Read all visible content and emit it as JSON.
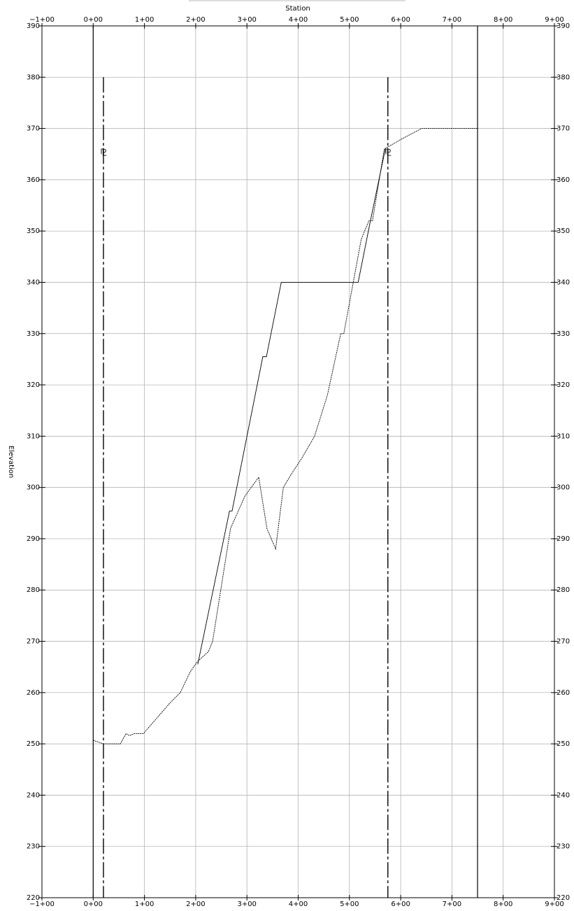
{
  "chart_data": {
    "type": "line",
    "x_label": "Station",
    "y_label": "Elevation",
    "xlim": [
      -100,
      900
    ],
    "ylim": [
      220,
      390
    ],
    "xticks": [
      {
        "value": -100,
        "label": "−1+00"
      },
      {
        "value": 0,
        "label": "0+00"
      },
      {
        "value": 100,
        "label": "1+00"
      },
      {
        "value": 200,
        "label": "2+00"
      },
      {
        "value": 300,
        "label": "3+00"
      },
      {
        "value": 400,
        "label": "4+00"
      },
      {
        "value": 500,
        "label": "5+00"
      },
      {
        "value": 600,
        "label": "6+00"
      },
      {
        "value": 700,
        "label": "7+00"
      },
      {
        "value": 800,
        "label": "8+00"
      },
      {
        "value": 900,
        "label": "9+00"
      }
    ],
    "yticks": [
      220,
      230,
      240,
      250,
      260,
      270,
      280,
      290,
      300,
      310,
      320,
      330,
      340,
      350,
      360,
      370,
      380,
      390
    ],
    "grid": true,
    "reference_lines": [
      {
        "x": 0,
        "dash": false
      },
      {
        "x": 750,
        "dash": false
      },
      {
        "x": 20,
        "top": 380,
        "dash": true,
        "label": "⅊"
      },
      {
        "x": 575,
        "top": 380,
        "dash": true,
        "label": "⅊"
      }
    ],
    "series": [
      {
        "color": "#000000",
        "dash": true,
        "x": [
          0,
          20,
          53,
          64,
          71,
          80,
          98,
          150,
          170,
          189,
          203,
          225,
          233,
          268,
          296,
          323,
          339,
          356,
          371,
          386,
          407,
          432,
          457,
          483,
          489,
          523,
          538,
          545,
          568,
          603,
          641,
          750
        ],
        "values": [
          250.7,
          250,
          250,
          252,
          251.6,
          252,
          252,
          258,
          260,
          264,
          266,
          268,
          270,
          292,
          298.3,
          302,
          292,
          288,
          300,
          302.5,
          305.7,
          310,
          318,
          330,
          330,
          348.4,
          352,
          352,
          366,
          368,
          370,
          370
        ]
      },
      {
        "color": "#000000",
        "dash": false,
        "x": [
          204,
          266,
          271,
          331,
          338,
          367,
          517,
          541,
          570
        ],
        "values": [
          265.5,
          295.4,
          295.4,
          325.5,
          325.5,
          340,
          340,
          352,
          366
        ]
      }
    ]
  }
}
